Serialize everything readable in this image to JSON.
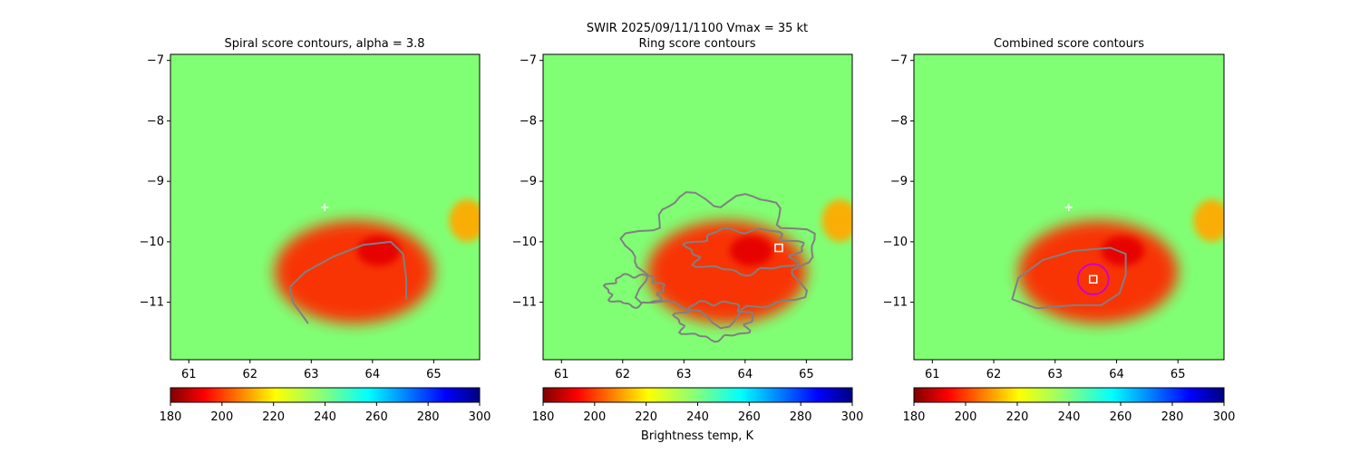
{
  "figure": {
    "suptitle_line1": "SWIR  2025/09/11/1100    Vmax = 35 kt",
    "colorbar_label": "Brightness temp, K"
  },
  "chart_data": [
    {
      "type": "heatmap",
      "title": "Spiral score contours, alpha =  3.8",
      "xlabel": "",
      "ylabel": "",
      "xlim": [
        60.7,
        65.75
      ],
      "ylim": [
        -11.95,
        -6.9
      ],
      "xticks": [
        61,
        62,
        63,
        64,
        65
      ],
      "yticks": [
        -7,
        -8,
        -9,
        -10,
        -11
      ],
      "grid": false,
      "colorbar": {
        "colormap": "jet_r",
        "range": [
          180,
          300
        ],
        "ticks": [
          180,
          200,
          220,
          240,
          260,
          280,
          300
        ]
      },
      "cold_regions": [
        {
          "lon": 63.7,
          "lat": -10.5,
          "rx": 1.3,
          "ry": 0.85,
          "temp": 200
        },
        {
          "lon": 64.1,
          "lat": -10.15,
          "rx": 0.35,
          "ry": 0.25,
          "temp": 192
        },
        {
          "lon": 65.55,
          "lat": -9.65,
          "rx": 0.3,
          "ry": 0.35,
          "temp": 215
        }
      ],
      "markers": [
        {
          "shape": "plus",
          "color": "#ffffff",
          "lon": 63.22,
          "lat": -9.43
        }
      ],
      "contour": [
        [
          62.95,
          -11.35
        ],
        [
          62.7,
          -11.0
        ],
        [
          62.65,
          -10.75
        ],
        [
          62.9,
          -10.5
        ],
        [
          63.35,
          -10.25
        ],
        [
          63.85,
          -10.05
        ],
        [
          64.3,
          -10.0
        ],
        [
          64.5,
          -10.2
        ],
        [
          64.55,
          -10.6
        ],
        [
          64.55,
          -10.95
        ]
      ]
    },
    {
      "type": "heatmap",
      "title": "Ring score contours",
      "xlabel": "",
      "ylabel": "",
      "xlim": [
        60.7,
        65.75
      ],
      "ylim": [
        -11.95,
        -6.9
      ],
      "xticks": [
        61,
        62,
        63,
        64,
        65
      ],
      "yticks": [
        -7,
        -8,
        -9,
        -10,
        -11
      ],
      "grid": false,
      "colorbar": {
        "colormap": "jet_r",
        "range": [
          180,
          300
        ],
        "ticks": [
          180,
          200,
          220,
          240,
          260,
          280,
          300
        ]
      },
      "cold_regions": [
        {
          "lon": 63.7,
          "lat": -10.5,
          "rx": 1.3,
          "ry": 0.85,
          "temp": 200
        },
        {
          "lon": 64.1,
          "lat": -10.15,
          "rx": 0.35,
          "ry": 0.25,
          "temp": 192
        },
        {
          "lon": 65.55,
          "lat": -9.65,
          "rx": 0.3,
          "ry": 0.35,
          "temp": 215
        }
      ],
      "markers": [
        {
          "shape": "square",
          "color": "#ffffff",
          "lon": 64.55,
          "lat": -10.1
        }
      ],
      "ring_contours": [
        {
          "lon": 63.6,
          "lat": -10.25,
          "rx": 1.45,
          "ry": 1.0
        },
        {
          "lon": 64.0,
          "lat": -10.15,
          "rx": 0.9,
          "ry": 0.35
        },
        {
          "lon": 63.5,
          "lat": -11.3,
          "rx": 0.6,
          "ry": 0.3
        },
        {
          "lon": 62.2,
          "lat": -10.8,
          "rx": 0.45,
          "ry": 0.25
        }
      ]
    },
    {
      "type": "heatmap",
      "title": "Combined score contours",
      "xlabel": "",
      "ylabel": "",
      "xlim": [
        60.7,
        65.75
      ],
      "ylim": [
        -11.95,
        -6.9
      ],
      "xticks": [
        61,
        62,
        63,
        64,
        65
      ],
      "yticks": [
        -7,
        -8,
        -9,
        -10,
        -11
      ],
      "grid": false,
      "colorbar": {
        "colormap": "jet_r",
        "range": [
          180,
          300
        ],
        "ticks": [
          180,
          200,
          220,
          240,
          260,
          280,
          300
        ]
      },
      "cold_regions": [
        {
          "lon": 63.7,
          "lat": -10.5,
          "rx": 1.3,
          "ry": 0.85,
          "temp": 200
        },
        {
          "lon": 64.1,
          "lat": -10.15,
          "rx": 0.35,
          "ry": 0.25,
          "temp": 192
        },
        {
          "lon": 65.55,
          "lat": -9.65,
          "rx": 0.3,
          "ry": 0.35,
          "temp": 215
        }
      ],
      "markers": [
        {
          "shape": "plus",
          "color": "#ffffff",
          "lon": 63.22,
          "lat": -9.43
        },
        {
          "shape": "square",
          "color": "#ffffff",
          "lon": 63.62,
          "lat": -10.62
        },
        {
          "shape": "circle",
          "color": "#cc00cc",
          "lon": 63.62,
          "lat": -10.62,
          "radius_deg": 0.25
        }
      ],
      "contour": [
        [
          62.3,
          -10.95
        ],
        [
          62.4,
          -10.6
        ],
        [
          62.8,
          -10.3
        ],
        [
          63.3,
          -10.15
        ],
        [
          63.9,
          -10.1
        ],
        [
          64.15,
          -10.2
        ],
        [
          64.15,
          -10.55
        ],
        [
          64.05,
          -10.85
        ],
        [
          63.75,
          -11.05
        ],
        [
          63.3,
          -11.05
        ],
        [
          62.7,
          -11.1
        ]
      ]
    }
  ]
}
